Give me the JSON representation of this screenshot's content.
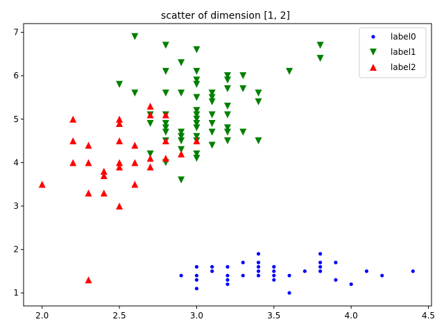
{
  "chart_data": {
    "type": "scatter",
    "title": "scatter of dimension [1, 2]",
    "xlabel": "",
    "ylabel": "",
    "xlim": [
      1.88,
      4.52
    ],
    "ylim": [
      0.7,
      7.2
    ],
    "xticks": [
      2.0,
      2.5,
      3.0,
      3.5,
      4.0,
      4.5
    ],
    "xtick_labels": [
      "2.0",
      "2.5",
      "3.0",
      "3.5",
      "4.0",
      "4.5"
    ],
    "yticks": [
      1,
      2,
      3,
      4,
      5,
      6,
      7
    ],
    "ytick_labels": [
      "1",
      "2",
      "3",
      "4",
      "5",
      "6",
      "7"
    ],
    "grid": false,
    "legend_position": "top-right",
    "series": [
      {
        "name": "label0",
        "marker": "circle",
        "color": "#0000ff",
        "points": [
          [
            2.9,
            1.4
          ],
          [
            3.0,
            1.6
          ],
          [
            3.0,
            1.4
          ],
          [
            3.0,
            1.3
          ],
          [
            3.0,
            1.1
          ],
          [
            3.1,
            1.6
          ],
          [
            3.1,
            1.5
          ],
          [
            3.2,
            1.6
          ],
          [
            3.2,
            1.4
          ],
          [
            3.2,
            1.3
          ],
          [
            3.2,
            1.2
          ],
          [
            3.3,
            1.7
          ],
          [
            3.3,
            1.4
          ],
          [
            3.4,
            1.9
          ],
          [
            3.4,
            1.7
          ],
          [
            3.4,
            1.6
          ],
          [
            3.4,
            1.5
          ],
          [
            3.4,
            1.4
          ],
          [
            3.5,
            1.6
          ],
          [
            3.5,
            1.5
          ],
          [
            3.5,
            1.4
          ],
          [
            3.5,
            1.3
          ],
          [
            3.6,
            1.4
          ],
          [
            3.6,
            1.0
          ],
          [
            3.7,
            1.5
          ],
          [
            3.8,
            1.9
          ],
          [
            3.8,
            1.7
          ],
          [
            3.8,
            1.6
          ],
          [
            3.8,
            1.5
          ],
          [
            3.9,
            1.7
          ],
          [
            3.9,
            1.3
          ],
          [
            4.0,
            1.2
          ],
          [
            4.1,
            1.5
          ],
          [
            4.2,
            1.4
          ],
          [
            4.4,
            1.5
          ]
        ]
      },
      {
        "name": "label1",
        "marker": "triangle_down",
        "color": "#008000",
        "points": [
          [
            2.5,
            5.8
          ],
          [
            2.6,
            6.9
          ],
          [
            2.6,
            5.6
          ],
          [
            2.7,
            5.1
          ],
          [
            2.7,
            4.9
          ],
          [
            2.7,
            4.2
          ],
          [
            2.8,
            6.7
          ],
          [
            2.8,
            6.1
          ],
          [
            2.8,
            5.6
          ],
          [
            2.8,
            5.1
          ],
          [
            2.8,
            4.9
          ],
          [
            2.8,
            4.8
          ],
          [
            2.8,
            4.7
          ],
          [
            2.8,
            4.5
          ],
          [
            2.8,
            4.0
          ],
          [
            2.9,
            6.3
          ],
          [
            2.9,
            5.6
          ],
          [
            2.9,
            4.7
          ],
          [
            2.9,
            4.6
          ],
          [
            2.9,
            4.5
          ],
          [
            2.9,
            4.3
          ],
          [
            2.9,
            3.6
          ],
          [
            3.0,
            6.6
          ],
          [
            3.0,
            6.1
          ],
          [
            3.0,
            5.9
          ],
          [
            3.0,
            5.8
          ],
          [
            3.0,
            5.5
          ],
          [
            3.0,
            5.2
          ],
          [
            3.0,
            5.1
          ],
          [
            3.0,
            5.0
          ],
          [
            3.0,
            4.9
          ],
          [
            3.0,
            4.8
          ],
          [
            3.0,
            4.6
          ],
          [
            3.0,
            4.5
          ],
          [
            3.0,
            4.2
          ],
          [
            3.0,
            4.1
          ],
          [
            3.1,
            5.6
          ],
          [
            3.1,
            5.5
          ],
          [
            3.1,
            5.4
          ],
          [
            3.1,
            5.1
          ],
          [
            3.1,
            4.9
          ],
          [
            3.1,
            4.7
          ],
          [
            3.1,
            4.4
          ],
          [
            3.2,
            6.0
          ],
          [
            3.2,
            5.9
          ],
          [
            3.2,
            5.7
          ],
          [
            3.2,
            5.3
          ],
          [
            3.2,
            5.1
          ],
          [
            3.2,
            4.8
          ],
          [
            3.2,
            4.7
          ],
          [
            3.2,
            4.5
          ],
          [
            3.3,
            6.0
          ],
          [
            3.3,
            5.7
          ],
          [
            3.3,
            4.7
          ],
          [
            3.4,
            5.6
          ],
          [
            3.4,
            5.4
          ],
          [
            3.4,
            4.5
          ],
          [
            3.6,
            6.1
          ],
          [
            3.8,
            6.7
          ],
          [
            3.8,
            6.4
          ]
        ]
      },
      {
        "name": "label2",
        "marker": "triangle_up",
        "color": "#ff0000",
        "points": [
          [
            2.0,
            3.5
          ],
          [
            2.2,
            5.0
          ],
          [
            2.2,
            4.5
          ],
          [
            2.2,
            4.0
          ],
          [
            2.3,
            4.4
          ],
          [
            2.3,
            4.0
          ],
          [
            2.3,
            3.3
          ],
          [
            2.3,
            1.3
          ],
          [
            2.4,
            3.8
          ],
          [
            2.4,
            3.7
          ],
          [
            2.4,
            3.3
          ],
          [
            2.5,
            5.0
          ],
          [
            2.5,
            4.9
          ],
          [
            2.5,
            4.5
          ],
          [
            2.5,
            4.0
          ],
          [
            2.5,
            3.9
          ],
          [
            2.5,
            3.0
          ],
          [
            2.6,
            4.4
          ],
          [
            2.6,
            4.0
          ],
          [
            2.6,
            3.5
          ],
          [
            2.7,
            5.3
          ],
          [
            2.7,
            5.1
          ],
          [
            2.7,
            4.1
          ],
          [
            2.7,
            3.9
          ],
          [
            2.8,
            5.1
          ],
          [
            2.8,
            4.5
          ],
          [
            2.8,
            4.1
          ],
          [
            2.9,
            4.2
          ],
          [
            3.0,
            4.5
          ]
        ]
      }
    ]
  }
}
